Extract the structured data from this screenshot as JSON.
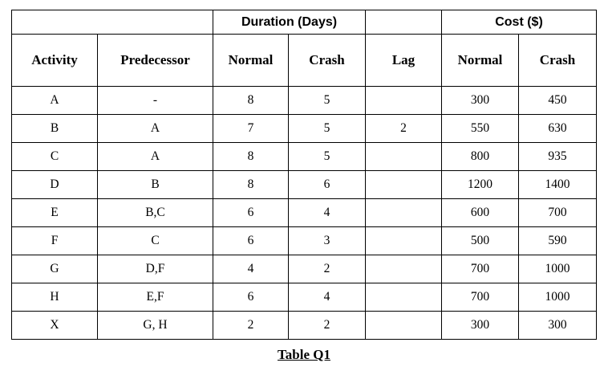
{
  "table": {
    "group_headers": {
      "duration": "Duration (Days)",
      "cost": "Cost ($)"
    },
    "columns": [
      "Activity",
      "Predecessor",
      "Normal",
      "Crash",
      "Lag",
      "Normal",
      "Crash"
    ],
    "rows": [
      {
        "activity": "A",
        "predecessor": "-",
        "dur_normal": "8",
        "dur_crash": "5",
        "lag": "",
        "cost_normal": "300",
        "cost_crash": "450"
      },
      {
        "activity": "B",
        "predecessor": "A",
        "dur_normal": "7",
        "dur_crash": "5",
        "lag": "2",
        "cost_normal": "550",
        "cost_crash": "630"
      },
      {
        "activity": "C",
        "predecessor": "A",
        "dur_normal": "8",
        "dur_crash": "5",
        "lag": "",
        "cost_normal": "800",
        "cost_crash": "935"
      },
      {
        "activity": "D",
        "predecessor": "B",
        "dur_normal": "8",
        "dur_crash": "6",
        "lag": "",
        "cost_normal": "1200",
        "cost_crash": "1400"
      },
      {
        "activity": "E",
        "predecessor": "B,C",
        "dur_normal": "6",
        "dur_crash": "4",
        "lag": "",
        "cost_normal": "600",
        "cost_crash": "700"
      },
      {
        "activity": "F",
        "predecessor": "C",
        "dur_normal": "6",
        "dur_crash": "3",
        "lag": "",
        "cost_normal": "500",
        "cost_crash": "590"
      },
      {
        "activity": "G",
        "predecessor": "D,F",
        "dur_normal": "4",
        "dur_crash": "2",
        "lag": "",
        "cost_normal": "700",
        "cost_crash": "1000"
      },
      {
        "activity": "H",
        "predecessor": "E,F",
        "dur_normal": "6",
        "dur_crash": "4",
        "lag": "",
        "cost_normal": "700",
        "cost_crash": "1000"
      },
      {
        "activity": "X",
        "predecessor": "G, H",
        "dur_normal": "2",
        "dur_crash": "2",
        "lag": "",
        "cost_normal": "300",
        "cost_crash": "300"
      }
    ]
  },
  "caption": "Table Q1"
}
